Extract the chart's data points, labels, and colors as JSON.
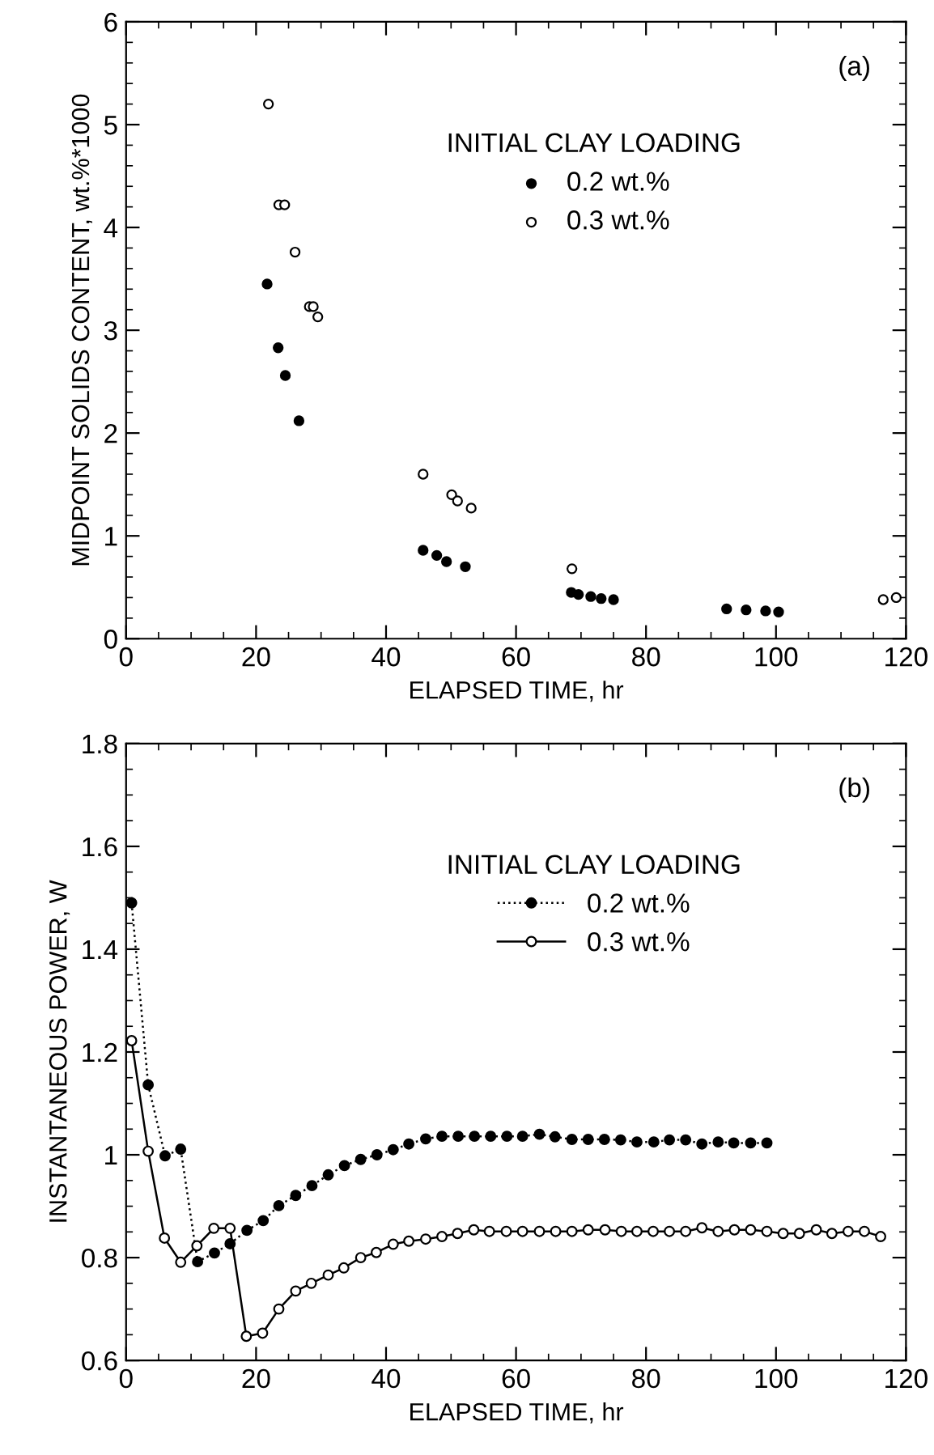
{
  "chart_data": [
    {
      "type": "scatter",
      "annotations": [
        "(a)"
      ],
      "xlabel": "ELAPSED TIME, hr",
      "ylabel": "MIDPOINT SOLIDS CONTENT, wt.%*1000",
      "legend_title": "INITIAL CLAY LOADING",
      "legend": "top right",
      "xlim": [
        0,
        120
      ],
      "ylim": [
        0,
        6
      ],
      "xticks": [
        0,
        20,
        40,
        60,
        80,
        100,
        120
      ],
      "yticks": [
        0,
        1,
        2,
        3,
        4,
        5,
        6
      ],
      "grid": false,
      "series": [
        {
          "name": "0.2 wt.%",
          "color": "#000000",
          "marker": "circle",
          "x": [
            21.7,
            23.4,
            24.5,
            26.6,
            45.7,
            47.8,
            49.3,
            52.2,
            68.5,
            69.6,
            71.5,
            73.1,
            75.0,
            92.4,
            95.4,
            98.4,
            100.4
          ],
          "values": [
            3.45,
            2.83,
            2.56,
            2.12,
            0.86,
            0.81,
            0.75,
            0.7,
            0.45,
            0.43,
            0.41,
            0.39,
            0.38,
            0.29,
            0.28,
            0.27,
            0.26
          ]
        },
        {
          "name": "0.3 wt.%",
          "color": "#000000",
          "marker": "circle",
          "x": [
            21.9,
            23.5,
            24.4,
            26.0,
            28.2,
            28.8,
            29.5,
            45.7,
            50.1,
            51.0,
            53.1,
            68.6,
            116.5,
            118.5
          ],
          "values": [
            5.2,
            4.22,
            4.22,
            3.76,
            3.23,
            3.23,
            3.13,
            1.6,
            1.4,
            1.34,
            1.27,
            0.68,
            0.38,
            0.4
          ]
        }
      ]
    },
    {
      "type": "line",
      "annotations": [
        "(b)"
      ],
      "xlabel": "ELAPSED TIME, hr",
      "ylabel": "INSTANTANEOUS POWER, W",
      "legend_title": "INITIAL CLAY LOADING",
      "legend": "top right",
      "xlim": [
        0,
        120
      ],
      "ylim": [
        0.6,
        1.8
      ],
      "xticks": [
        0,
        20,
        40,
        60,
        80,
        100,
        120
      ],
      "yticks": [
        0.6,
        0.8,
        1,
        1.2,
        1.4,
        1.6,
        1.8
      ],
      "grid": false,
      "series": [
        {
          "name": "0.2 wt.%",
          "color": "#000000",
          "marker": "circle",
          "line_style": "dotted",
          "x": [
            0.85,
            3.4,
            6.0,
            8.4,
            11.0,
            13.6,
            16.0,
            18.6,
            21.1,
            23.5,
            26.1,
            28.6,
            31.1,
            33.6,
            36.1,
            38.6,
            41.1,
            43.5,
            46.1,
            48.6,
            51.1,
            53.6,
            56.1,
            58.6,
            61.0,
            63.6,
            66.0,
            68.6,
            71.1,
            73.6,
            76.1,
            78.6,
            81.2,
            83.6,
            86.1,
            88.6,
            91.1,
            93.5,
            96.1,
            98.6
          ],
          "values": [
            1.49,
            1.136,
            0.998,
            1.011,
            0.792,
            0.809,
            0.827,
            0.853,
            0.872,
            0.901,
            0.921,
            0.94,
            0.961,
            0.979,
            0.991,
            1.0,
            1.01,
            1.021,
            1.031,
            1.036,
            1.036,
            1.036,
            1.036,
            1.036,
            1.036,
            1.04,
            1.035,
            1.03,
            1.03,
            1.03,
            1.029,
            1.025,
            1.025,
            1.029,
            1.029,
            1.021,
            1.025,
            1.023,
            1.023,
            1.023
          ]
        },
        {
          "name": "0.3 wt.%",
          "color": "#000000",
          "marker": "circle",
          "line_style": "solid",
          "x": [
            0.85,
            3.4,
            5.9,
            8.4,
            10.9,
            13.5,
            16.0,
            18.5,
            21.0,
            23.5,
            26.1,
            28.5,
            31.1,
            33.5,
            36.1,
            38.5,
            41.1,
            43.5,
            46.1,
            48.6,
            51.0,
            53.5,
            55.9,
            58.5,
            61.0,
            63.6,
            66.1,
            68.6,
            71.1,
            73.7,
            76.2,
            78.6,
            81.1,
            83.6,
            86.1,
            88.6,
            91.1,
            93.6,
            96.1,
            98.6,
            101.1,
            103.6,
            106.2,
            108.6,
            111.1,
            113.6,
            116.1
          ],
          "values": [
            1.222,
            1.007,
            0.838,
            0.791,
            0.823,
            0.857,
            0.857,
            0.647,
            0.653,
            0.7,
            0.735,
            0.75,
            0.766,
            0.78,
            0.8,
            0.81,
            0.826,
            0.832,
            0.836,
            0.841,
            0.847,
            0.854,
            0.851,
            0.851,
            0.851,
            0.851,
            0.851,
            0.851,
            0.854,
            0.854,
            0.851,
            0.851,
            0.851,
            0.851,
            0.851,
            0.858,
            0.851,
            0.854,
            0.854,
            0.851,
            0.847,
            0.847,
            0.854,
            0.847,
            0.851,
            0.851,
            0.841
          ]
        }
      ]
    }
  ]
}
